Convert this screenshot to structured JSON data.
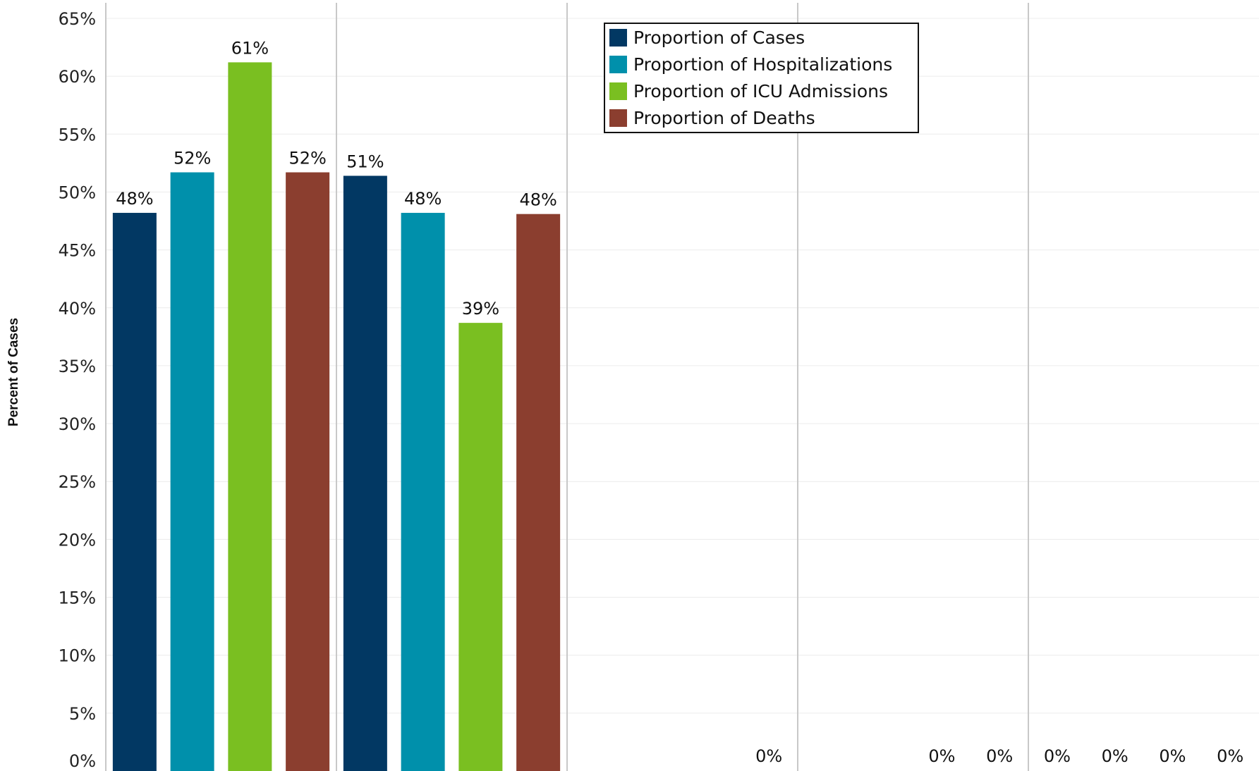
{
  "chart_data": {
    "type": "bar",
    "title": "",
    "xlabel": "",
    "ylabel": "Percent of Cases",
    "ylim": [
      0,
      65
    ],
    "y_ticks": [
      "0%",
      "5%",
      "10%",
      "15%",
      "20%",
      "25%",
      "30%",
      "35%",
      "40%",
      "45%",
      "50%",
      "55%",
      "60%",
      "65%"
    ],
    "grid": true,
    "legend_position": "top-center",
    "series": [
      {
        "name": "Proportion of Cases",
        "color": "#023863",
        "values": [
          48.2,
          51.4,
          0,
          0,
          0
        ]
      },
      {
        "name": "Proportion of Hospitalizations",
        "color": "#0090AB",
        "values": [
          51.7,
          48.2,
          0,
          0,
          0
        ]
      },
      {
        "name": "Proportion of ICU Admissions",
        "color": "#7ABF21",
        "values": [
          61.2,
          38.7,
          0,
          0,
          0
        ]
      },
      {
        "name": "Proportion of Deaths",
        "color": "#8B3E2F",
        "values": [
          51.7,
          48.1,
          0,
          0,
          0
        ]
      }
    ],
    "data_labels": [
      [
        "48%",
        "52%",
        "61%",
        "52%"
      ],
      [
        "51%",
        "48%",
        "39%",
        "48%"
      ],
      [
        "",
        "",
        "",
        "0%"
      ],
      [
        "",
        "",
        "0%",
        "0%"
      ],
      [
        "0%",
        "0%",
        "0%",
        "0%"
      ]
    ]
  }
}
